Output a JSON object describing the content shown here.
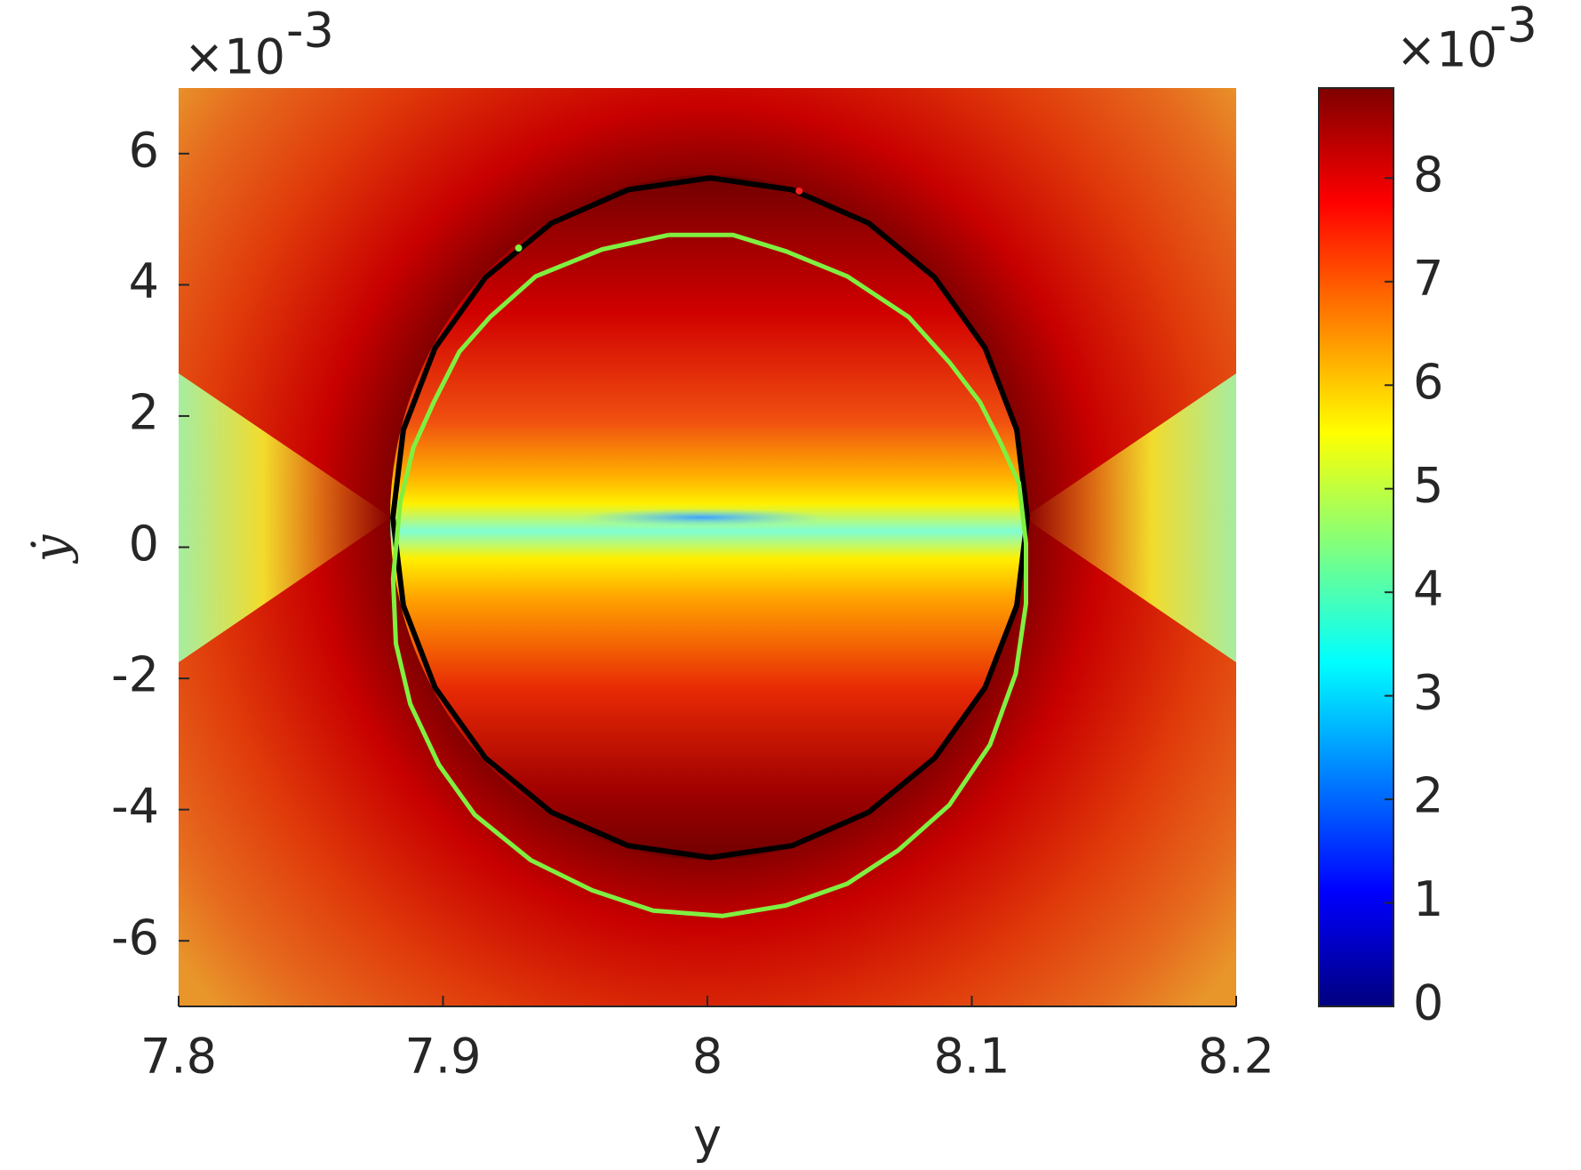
{
  "chart_data": {
    "type": "contour",
    "x_label": "y",
    "y_label": "ẏ",
    "y_exponent": {
      "base": "×10",
      "power": "-3"
    },
    "xlim": [
      7.8,
      8.2
    ],
    "xticks": [
      7.8,
      7.9,
      8,
      8.1,
      8.2
    ],
    "ylim": [
      -7,
      7
    ],
    "yticks": [
      -6,
      -4,
      -2,
      0,
      2,
      4,
      6
    ],
    "series": [
      {
        "color": "#000000",
        "x": [
          8.121,
          8.117,
          8.105,
          8.086,
          8.061,
          8.032,
          8.001,
          7.97,
          7.941,
          7.916,
          7.897,
          7.885,
          7.881,
          7.885,
          7.897,
          7.916,
          7.941,
          7.97,
          8.001,
          8.032,
          8.061,
          8.086,
          8.105,
          8.117,
          8.121
        ],
        "y": [
          0.45,
          1.79,
          3.04,
          4.11,
          4.94,
          5.45,
          5.63,
          5.45,
          4.94,
          4.11,
          3.04,
          1.79,
          0.45,
          -0.89,
          -2.14,
          -3.21,
          -4.04,
          -4.55,
          -4.73,
          -4.55,
          -4.04,
          -3.21,
          -2.14,
          -0.89,
          0.45
        ]
      },
      {
        "color": "#80f040",
        "x": [
          7.9853,
          8.0097,
          8.0297,
          8.0529,
          8.0761,
          8.0915,
          8.1031,
          8.1108,
          8.1178,
          8.1205,
          8.1205,
          8.1166,
          8.1069,
          8.0915,
          8.0722,
          8.0529,
          8.0297,
          8.0058,
          7.9795,
          7.9564,
          7.9332,
          7.912,
          7.8985,
          7.8876,
          7.8822,
          7.8811,
          7.8838,
          7.8888,
          7.8965,
          7.9062,
          7.9178,
          7.9351,
          7.9602,
          7.9853
        ],
        "y": [
          4.76,
          4.76,
          4.51,
          4.13,
          3.51,
          2.82,
          2.21,
          1.6,
          0.98,
          0.06,
          -0.86,
          -1.93,
          -3.01,
          -3.93,
          -4.62,
          -5.13,
          -5.46,
          -5.62,
          -5.54,
          -5.23,
          -4.77,
          -4.08,
          -3.32,
          -2.39,
          -1.47,
          -0.48,
          0.68,
          1.52,
          2.21,
          2.98,
          3.51,
          4.13,
          4.54,
          4.76
        ]
      }
    ],
    "points": [
      {
        "color": "#80f040",
        "x": 7.9286,
        "y": 4.56
      },
      {
        "color": "#ff2020",
        "x": 8.0347,
        "y": 5.43
      }
    ],
    "colorbar": {
      "clim": [
        0,
        8.87
      ],
      "ticks": [
        0,
        1,
        2,
        3,
        4,
        5,
        6,
        7,
        8
      ],
      "exponent": {
        "base": "×10",
        "power": "-3"
      },
      "colormap": [
        "#00007f",
        "#0000ff",
        "#007fff",
        "#00ffff",
        "#7fff7f",
        "#ffff00",
        "#ff7f00",
        "#ff0000",
        "#7f0000"
      ]
    }
  }
}
